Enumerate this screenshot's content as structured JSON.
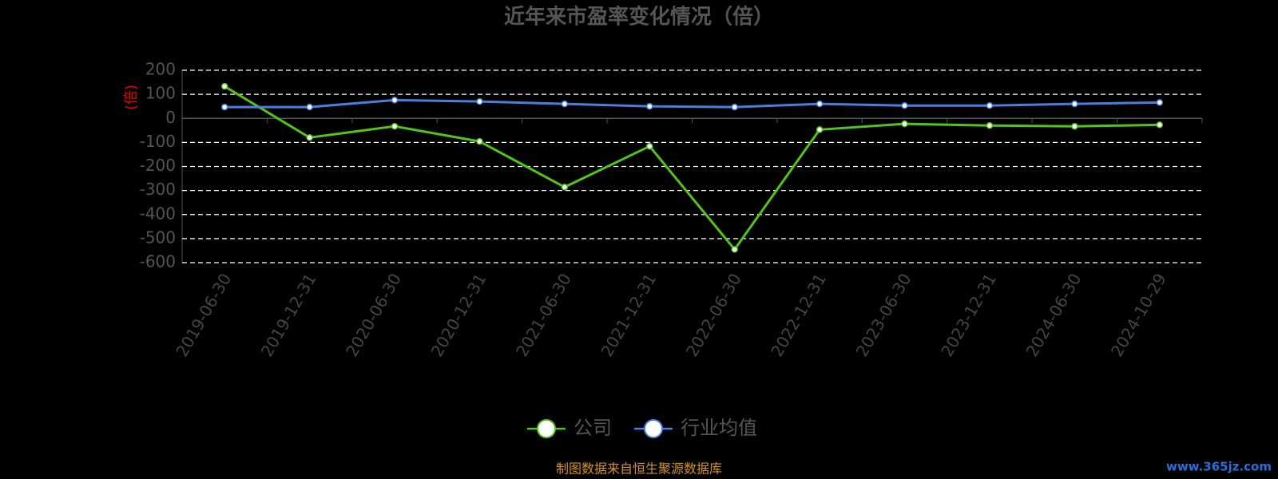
{
  "chart_data": {
    "type": "line",
    "title": "近年来市盈率变化情况（倍）",
    "y_label": "(倍)",
    "categories": [
      "2019-06-30",
      "2019-12-31",
      "2020-06-30",
      "2020-12-31",
      "2021-06-30",
      "2021-12-31",
      "2022-06-30",
      "2022-12-31",
      "2023-06-30",
      "2023-12-31",
      "2024-06-30",
      "2024-10-29"
    ],
    "series": [
      {
        "name": "公司",
        "color": "#52c41a",
        "values": [
          133,
          -80,
          -33,
          -96,
          -286,
          -116,
          -545,
          -47,
          -23,
          -30,
          -33,
          -27
        ]
      },
      {
        "name": "行业均值",
        "color": "#4a7fe0",
        "values": [
          47,
          47,
          76,
          70,
          60,
          50,
          47,
          60,
          53,
          53,
          60,
          66
        ]
      }
    ],
    "ylim": [
      -600,
      200
    ],
    "yticks": [
      200,
      100,
      0,
      -100,
      -200,
      -300,
      -400,
      -500,
      -600
    ],
    "grid": true,
    "source": "制图数据来自恒生聚源数据库",
    "watermark": "www.365jz.com"
  }
}
